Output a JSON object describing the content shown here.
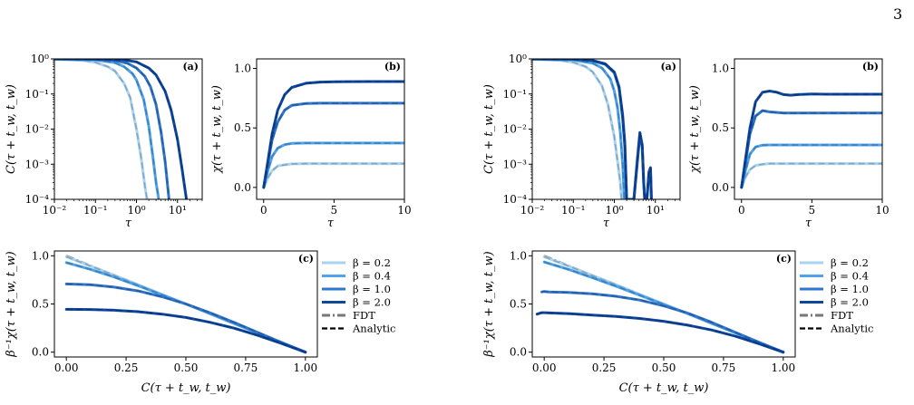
{
  "page_number": "3",
  "colors": {
    "beta_0_2": "#a9d3f2",
    "beta_0_4": "#4ea3ea",
    "beta_1_0": "#2f76cc",
    "beta_2_0": "#0e47a0",
    "fdt": "#777777",
    "analytic": "#000000"
  },
  "legend": {
    "entries": [
      "β = 0.2",
      "β = 0.4",
      "β = 1.0",
      "β = 2.0",
      "FDT",
      "Analytic"
    ]
  },
  "chart_data": [
    {
      "id": "left-a",
      "panel": "(a)",
      "type": "line",
      "xlabel": "τ",
      "ylabel": "C(τ + t_w, t_w)",
      "xscale": "log",
      "yscale": "log",
      "xlim": [
        0.01,
        40
      ],
      "ylim": [
        0.0001,
        1
      ],
      "xticks": [
        0.01,
        0.1,
        1,
        10
      ],
      "xticklabels": [
        "10⁻²",
        "10⁻¹",
        "10⁰",
        "10¹"
      ],
      "yticks": [
        0.0001,
        0.001,
        0.01,
        0.1,
        1
      ],
      "yticklabels": [
        "10⁻⁴",
        "10⁻³",
        "10⁻²",
        "10⁻¹",
        "10⁰"
      ],
      "series": [
        {
          "color": "beta_0_2",
          "x": [
            0.01,
            0.05,
            0.1,
            0.2,
            0.3,
            0.5,
            0.7,
            1.0,
            1.3,
            1.6,
            1.8
          ],
          "y": [
            0.98,
            0.9,
            0.8,
            0.6,
            0.45,
            0.2,
            0.08,
            0.01,
            0.0015,
            0.00025,
            0.0001
          ]
        },
        {
          "color": "beta_0_4",
          "x": [
            0.01,
            0.1,
            0.3,
            0.5,
            0.8,
            1.0,
            1.5,
            2.0,
            2.5,
            3.0,
            3.5
          ],
          "y": [
            0.99,
            0.93,
            0.78,
            0.6,
            0.38,
            0.25,
            0.07,
            0.012,
            0.0017,
            0.0003,
            0.0001
          ]
        },
        {
          "color": "beta_1_0",
          "x": [
            0.01,
            0.1,
            0.3,
            0.6,
            1.0,
            1.6,
            2.2,
            3.0,
            4.0,
            5.0,
            6.2
          ],
          "y": [
            0.995,
            0.97,
            0.9,
            0.75,
            0.55,
            0.32,
            0.16,
            0.05,
            0.008,
            0.0012,
            0.0001
          ]
        },
        {
          "color": "beta_2_0",
          "x": [
            0.01,
            0.1,
            0.5,
            1.0,
            2.0,
            3.0,
            5.0,
            7.0,
            10.0,
            13.0,
            16.5
          ],
          "y": [
            0.998,
            0.985,
            0.93,
            0.82,
            0.55,
            0.35,
            0.12,
            0.035,
            0.005,
            0.0007,
            0.0001
          ]
        }
      ]
    },
    {
      "id": "left-b",
      "panel": "(b)",
      "type": "line",
      "xlabel": "τ",
      "ylabel": "χ(τ + t_w, t_w)",
      "xlim": [
        -0.5,
        10
      ],
      "ylim": [
        -0.1,
        1.08
      ],
      "xticks": [
        0,
        5,
        10
      ],
      "xticklabels": [
        "0",
        "5",
        "10"
      ],
      "yticks": [
        0,
        0.5,
        1.0
      ],
      "yticklabels": [
        "0.0",
        "0.5",
        "1.0"
      ],
      "series": [
        {
          "color": "beta_0_2",
          "x": [
            0,
            0.3,
            0.6,
            1.0,
            1.5,
            2.0,
            3.0,
            5.0,
            7.5,
            10
          ],
          "y": [
            0,
            0.08,
            0.14,
            0.18,
            0.19,
            0.198,
            0.2,
            0.2,
            0.2,
            0.2
          ]
        },
        {
          "color": "beta_0_4",
          "x": [
            0,
            0.3,
            0.6,
            1.0,
            1.5,
            2.0,
            3.0,
            5.0,
            7.5,
            10
          ],
          "y": [
            0,
            0.14,
            0.26,
            0.33,
            0.36,
            0.37,
            0.373,
            0.373,
            0.373,
            0.373
          ]
        },
        {
          "color": "beta_1_0",
          "x": [
            0,
            0.3,
            0.6,
            1.0,
            1.5,
            2.0,
            3.0,
            4.0,
            5.0,
            7.5,
            10
          ],
          "y": [
            0,
            0.2,
            0.4,
            0.55,
            0.65,
            0.69,
            0.705,
            0.708,
            0.708,
            0.708,
            0.708
          ]
        },
        {
          "color": "beta_2_0",
          "x": [
            0,
            0.3,
            0.6,
            1.0,
            1.5,
            2.0,
            3.0,
            4.0,
            5.0,
            7.5,
            10
          ],
          "y": [
            0,
            0.22,
            0.45,
            0.65,
            0.78,
            0.84,
            0.875,
            0.885,
            0.888,
            0.89,
            0.89
          ]
        }
      ]
    },
    {
      "id": "left-c",
      "panel": "(c)",
      "type": "line",
      "xlabel": "C(τ + t_w, t_w)",
      "ylabel": "β⁻¹χ(τ + t_w, t_w)",
      "xlim": [
        -0.05,
        1.05
      ],
      "ylim": [
        -0.05,
        1.05
      ],
      "xticks": [
        0,
        0.25,
        0.5,
        0.75,
        1.0
      ],
      "xticklabels": [
        "0.00",
        "0.25",
        "0.50",
        "0.75",
        "1.00"
      ],
      "yticks": [
        0,
        0.5,
        1.0
      ],
      "yticklabels": [
        "0.0",
        "0.5",
        "1.0"
      ],
      "series": [
        {
          "color": "fdt",
          "x": [
            0,
            1
          ],
          "y": [
            1,
            0
          ]
        },
        {
          "color": "beta_0_2",
          "x": [
            0,
            0.1,
            0.2,
            0.3,
            0.4,
            0.5,
            0.6,
            0.7,
            0.8,
            0.9,
            1.0
          ],
          "y": [
            0.99,
            0.895,
            0.798,
            0.7,
            0.6,
            0.5,
            0.4,
            0.3,
            0.2,
            0.1,
            0
          ]
        },
        {
          "color": "beta_0_4",
          "x": [
            0,
            0.1,
            0.2,
            0.3,
            0.4,
            0.5,
            0.6,
            0.7,
            0.8,
            0.9,
            1.0
          ],
          "y": [
            0.93,
            0.86,
            0.78,
            0.69,
            0.595,
            0.5,
            0.4,
            0.3,
            0.2,
            0.1,
            0
          ]
        },
        {
          "color": "beta_1_0",
          "x": [
            0,
            0.1,
            0.2,
            0.3,
            0.4,
            0.5,
            0.6,
            0.7,
            0.8,
            0.9,
            1.0
          ],
          "y": [
            0.708,
            0.7,
            0.675,
            0.635,
            0.575,
            0.5,
            0.41,
            0.31,
            0.205,
            0.1,
            0
          ]
        },
        {
          "color": "beta_2_0",
          "x": [
            0,
            0.1,
            0.2,
            0.3,
            0.4,
            0.5,
            0.6,
            0.7,
            0.8,
            0.9,
            1.0
          ],
          "y": [
            0.445,
            0.443,
            0.435,
            0.42,
            0.395,
            0.36,
            0.31,
            0.25,
            0.175,
            0.09,
            0
          ]
        }
      ]
    },
    {
      "id": "right-a",
      "panel": "(a)",
      "type": "line",
      "xlabel": "τ",
      "ylabel": "C(τ + t_w, t_w)",
      "xscale": "log",
      "yscale": "log",
      "xlim": [
        0.01,
        40
      ],
      "ylim": [
        0.0001,
        1
      ],
      "xticks": [
        0.01,
        0.1,
        1,
        10
      ],
      "xticklabels": [
        "10⁻²",
        "10⁻¹",
        "10⁰",
        "10¹"
      ],
      "yticks": [
        0.0001,
        0.001,
        0.01,
        0.1,
        1
      ],
      "yticklabels": [
        "10⁻⁴",
        "10⁻³",
        "10⁻²",
        "10⁻¹",
        "10⁰"
      ],
      "series": [
        {
          "color": "beta_0_2",
          "x": [
            0.01,
            0.05,
            0.1,
            0.2,
            0.3,
            0.5,
            0.7,
            1.0,
            1.2,
            1.4,
            1.5
          ],
          "y": [
            0.98,
            0.9,
            0.8,
            0.6,
            0.42,
            0.17,
            0.05,
            0.006,
            0.0012,
            0.0003,
            0.0001
          ]
        },
        {
          "color": "beta_0_4",
          "x": [
            0.01,
            0.1,
            0.3,
            0.5,
            0.8,
            1.0,
            1.2,
            1.4,
            1.6,
            1.75
          ],
          "y": [
            0.99,
            0.93,
            0.75,
            0.55,
            0.27,
            0.12,
            0.04,
            0.008,
            0.001,
            0.0001
          ]
        },
        {
          "color": "beta_1_0",
          "x": [
            0.01,
            0.1,
            0.3,
            0.6,
            1.0,
            1.3,
            1.6,
            1.8,
            2.0,
            2.4,
            3.0,
            3.6,
            4.2,
            4.8,
            5.2,
            5.5,
            6.2,
            7.0,
            7.6,
            8.0
          ],
          "y": [
            0.995,
            0.97,
            0.88,
            0.7,
            0.4,
            0.15,
            0.02,
            0.003,
            0.0001,
            0.0001,
            0.0001,
            0.001,
            0.007,
            0.003,
            0.0003,
            0.0001,
            0.0001,
            0.0005,
            0.0007,
            0.0001
          ]
        },
        {
          "color": "beta_2_0",
          "x": [
            0.01,
            0.1,
            0.3,
            0.6,
            1.0,
            1.3,
            1.6,
            1.8,
            2.0,
            2.4,
            3.0,
            3.6,
            4.2,
            4.8,
            5.2,
            5.5,
            6.2,
            7.0,
            7.6,
            8.0
          ],
          "y": [
            0.998,
            0.98,
            0.9,
            0.72,
            0.42,
            0.16,
            0.025,
            0.004,
            0.0001,
            0.0001,
            0.0001,
            0.0012,
            0.008,
            0.0035,
            0.0003,
            0.0001,
            0.0001,
            0.0006,
            0.0008,
            0.0001
          ]
        }
      ]
    },
    {
      "id": "right-b",
      "panel": "(b)",
      "type": "line",
      "xlabel": "τ",
      "ylabel": "χ(τ + t_w, t_w)",
      "xlim": [
        -0.5,
        10
      ],
      "ylim": [
        -0.1,
        1.08
      ],
      "xticks": [
        0,
        5,
        10
      ],
      "xticklabels": [
        "0",
        "5",
        "10"
      ],
      "yticks": [
        0,
        0.5,
        1.0
      ],
      "yticklabels": [
        "0.0",
        "0.5",
        "1.0"
      ],
      "series": [
        {
          "color": "beta_0_2",
          "x": [
            0,
            0.3,
            0.6,
            1.0,
            1.5,
            2.0,
            3.0,
            5.0,
            7.5,
            10
          ],
          "y": [
            0,
            0.09,
            0.15,
            0.185,
            0.195,
            0.2,
            0.2,
            0.2,
            0.2,
            0.2
          ]
        },
        {
          "color": "beta_0_4",
          "x": [
            0,
            0.3,
            0.6,
            1.0,
            1.5,
            2.0,
            3.0,
            5.0,
            7.5,
            10
          ],
          "y": [
            0,
            0.15,
            0.28,
            0.34,
            0.355,
            0.357,
            0.357,
            0.357,
            0.357,
            0.357
          ]
        },
        {
          "color": "beta_1_0",
          "x": [
            0,
            0.3,
            0.6,
            1.0,
            1.5,
            2.0,
            3.0,
            4.0,
            5.0,
            7.5,
            10
          ],
          "y": [
            0,
            0.22,
            0.45,
            0.6,
            0.645,
            0.635,
            0.625,
            0.625,
            0.625,
            0.625,
            0.625
          ]
        },
        {
          "color": "beta_2_0",
          "x": [
            0,
            0.3,
            0.6,
            1.0,
            1.5,
            2.0,
            2.5,
            3.0,
            3.5,
            4.0,
            5.0,
            6.0,
            7.5,
            10
          ],
          "y": [
            0,
            0.25,
            0.5,
            0.72,
            0.8,
            0.81,
            0.8,
            0.78,
            0.775,
            0.78,
            0.785,
            0.783,
            0.783,
            0.783
          ]
        }
      ]
    },
    {
      "id": "right-c",
      "panel": "(c)",
      "type": "line",
      "xlabel": "C(τ + t_w, t_w)",
      "ylabel": "β⁻¹χ(τ + t_w, t_w)",
      "xlim": [
        -0.05,
        1.05
      ],
      "ylim": [
        -0.05,
        1.05
      ],
      "xticks": [
        0,
        0.25,
        0.5,
        0.75,
        1.0
      ],
      "xticklabels": [
        "0.00",
        "0.25",
        "0.50",
        "0.75",
        "1.00"
      ],
      "yticks": [
        0,
        0.5,
        1.0
      ],
      "yticklabels": [
        "0.0",
        "0.5",
        "1.0"
      ],
      "series": [
        {
          "color": "fdt",
          "x": [
            0,
            1
          ],
          "y": [
            1,
            0
          ]
        },
        {
          "color": "beta_0_2",
          "x": [
            0,
            0.1,
            0.2,
            0.3,
            0.4,
            0.5,
            0.6,
            0.7,
            0.8,
            0.9,
            1.0
          ],
          "y": [
            0.99,
            0.895,
            0.797,
            0.7,
            0.6,
            0.5,
            0.4,
            0.3,
            0.2,
            0.1,
            0
          ]
        },
        {
          "color": "beta_0_4",
          "x": [
            0,
            0.1,
            0.2,
            0.3,
            0.4,
            0.5,
            0.6,
            0.7,
            0.8,
            0.9,
            1.0
          ],
          "y": [
            0.935,
            0.86,
            0.775,
            0.685,
            0.59,
            0.495,
            0.4,
            0.3,
            0.2,
            0.1,
            0
          ]
        },
        {
          "color": "beta_1_0",
          "x": [
            -0.01,
            0.0,
            0.02,
            0.1,
            0.2,
            0.3,
            0.4,
            0.5,
            0.6,
            0.7,
            0.8,
            0.9,
            1.0
          ],
          "y": [
            0.625,
            0.63,
            0.625,
            0.62,
            0.605,
            0.58,
            0.54,
            0.48,
            0.405,
            0.31,
            0.205,
            0.1,
            0
          ]
        },
        {
          "color": "beta_2_0",
          "x": [
            -0.03,
            -0.01,
            0.0,
            0.1,
            0.2,
            0.3,
            0.4,
            0.5,
            0.6,
            0.7,
            0.8,
            0.9,
            1.0
          ],
          "y": [
            0.395,
            0.41,
            0.41,
            0.4,
            0.385,
            0.37,
            0.35,
            0.32,
            0.28,
            0.23,
            0.165,
            0.085,
            0
          ]
        }
      ]
    }
  ]
}
